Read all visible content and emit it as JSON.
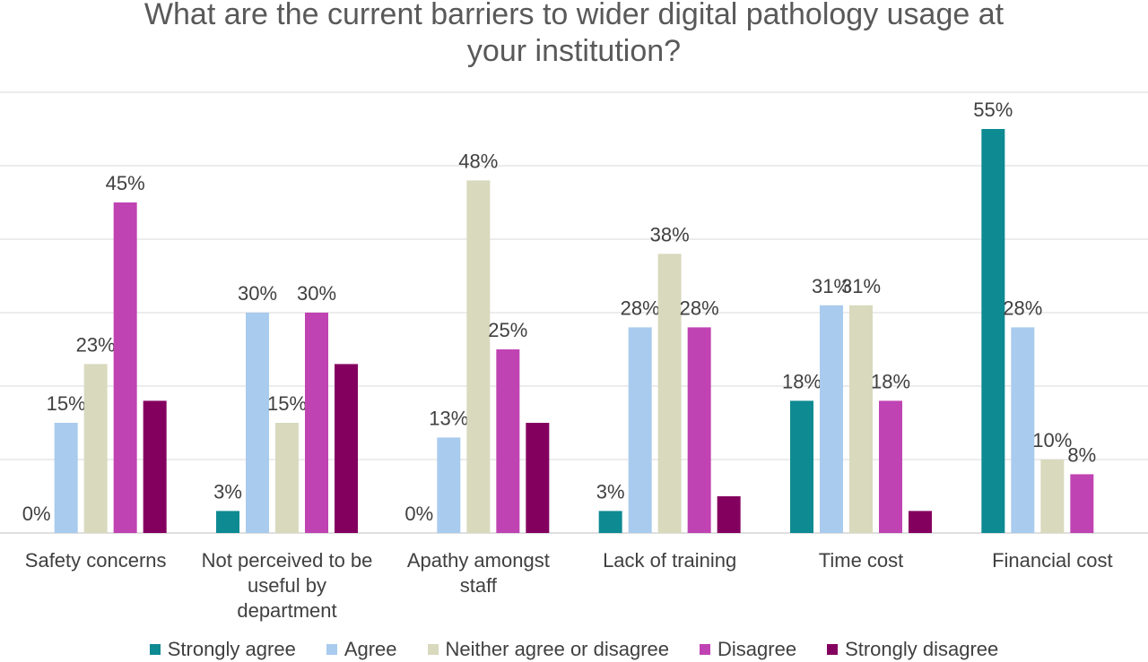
{
  "chart_data": {
    "type": "bar",
    "title": "What are the current barriers to wider digital pathology usage at your institution?",
    "title_lines": [
      "What are the current barriers to wider digital pathology usage at",
      "your institution?"
    ],
    "categories": [
      "Safety concerns",
      "Not perceived to be useful by department",
      "Apathy amongst staff",
      "Lack of training",
      "Time cost",
      "Financial cost"
    ],
    "category_lines": [
      [
        "Safety concerns"
      ],
      [
        "Not perceived to be",
        "useful by",
        "department"
      ],
      [
        "Apathy amongst",
        "staff"
      ],
      [
        "Lack of training"
      ],
      [
        "Time cost"
      ],
      [
        "Financial cost"
      ]
    ],
    "series": [
      {
        "name": "Strongly agree",
        "color": "#0E8A92",
        "values": [
          0,
          3,
          0,
          3,
          18,
          55
        ],
        "labels": [
          "0%",
          "3%",
          "0%",
          "3%",
          "18%",
          "55%"
        ]
      },
      {
        "name": "Agree",
        "color": "#A9CBEE",
        "values": [
          15,
          30,
          13,
          28,
          31,
          28
        ],
        "labels": [
          "15%",
          "30%",
          "13%",
          "28%",
          "31%",
          "28%"
        ]
      },
      {
        "name": "Neither agree or disagree",
        "color": "#D9D9BE",
        "values": [
          23,
          15,
          48,
          38,
          31,
          10
        ],
        "labels": [
          "23%",
          "15%",
          "48%",
          "38%",
          "31%",
          "10%"
        ]
      },
      {
        "name": "Disagree",
        "color": "#C043B3",
        "values": [
          45,
          30,
          25,
          28,
          18,
          8
        ],
        "labels": [
          "45%",
          "30%",
          "25%",
          "28%",
          "18%",
          "8%"
        ]
      },
      {
        "name": "Strongly disagree",
        "color": "#84005F",
        "values": [
          18,
          23,
          15,
          5,
          3,
          null
        ],
        "labels": [
          "",
          "",
          "",
          "",
          "",
          ""
        ]
      }
    ],
    "ylim": [
      0,
      60
    ],
    "grid": true,
    "legend_position": "bottom"
  }
}
